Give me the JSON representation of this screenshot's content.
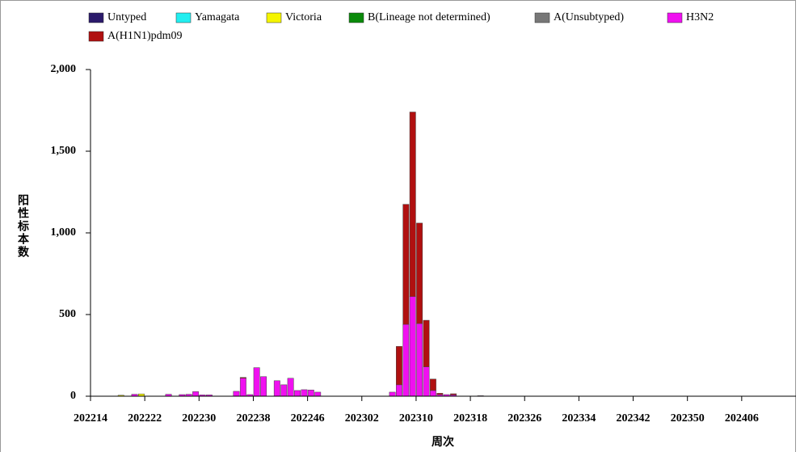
{
  "chart_data": {
    "type": "stacked_bar",
    "y_label": "阳性标本数",
    "x_label": "周次",
    "categories": [
      "202214",
      null,
      null,
      null,
      null,
      null,
      null,
      null,
      "202222",
      null,
      null,
      null,
      null,
      null,
      null,
      null,
      "202230",
      null,
      null,
      null,
      null,
      null,
      null,
      null,
      "202238",
      null,
      null,
      null,
      null,
      null,
      null,
      null,
      "202246",
      null,
      null,
      null,
      null,
      null,
      null,
      null,
      "202302",
      null,
      null,
      null,
      null,
      null,
      null,
      null,
      "202310",
      null,
      null,
      null,
      null,
      null,
      null,
      null,
      "202318",
      null,
      null,
      null,
      null,
      null,
      null,
      null,
      "202326",
      null,
      null,
      null,
      null,
      null,
      null,
      null,
      "202334",
      null,
      null,
      null,
      null,
      null,
      null,
      null,
      "202342",
      null,
      null,
      null,
      null,
      null,
      null,
      null,
      "202350",
      null,
      null,
      null,
      null,
      null,
      null,
      null,
      "202406",
      null,
      null,
      null,
      null,
      null,
      null,
      null
    ],
    "series": [
      {
        "name": "Untyped",
        "color": "#2b1a6b",
        "values": [
          0,
          0,
          0,
          0,
          0,
          0,
          0,
          0,
          0,
          0,
          0,
          0,
          0,
          0,
          0,
          0,
          0,
          0,
          0,
          0,
          0,
          0,
          0,
          0,
          0,
          0,
          0,
          0,
          0,
          0,
          0,
          0,
          0,
          0,
          0,
          0,
          0,
          0,
          0,
          0,
          0,
          0,
          0,
          0,
          0,
          0,
          0,
          0,
          0,
          0,
          0,
          0,
          0,
          0,
          0,
          0,
          0,
          0,
          0,
          0,
          0,
          0,
          0,
          0,
          0,
          0,
          0,
          0,
          0,
          0,
          0,
          0,
          0,
          0,
          0,
          0,
          0,
          0,
          0,
          0,
          0,
          0,
          0,
          0,
          0,
          0,
          0,
          0,
          0,
          0,
          0,
          0,
          0,
          0,
          0,
          0,
          0,
          0,
          0,
          0,
          0,
          0,
          0,
          0
        ]
      },
      {
        "name": "Yamagata",
        "color": "#22eef0",
        "values": [
          0,
          0,
          0,
          0,
          0,
          0,
          0,
          0,
          0,
          0,
          0,
          0,
          0,
          0,
          0,
          0,
          0,
          0,
          0,
          0,
          0,
          0,
          0,
          0,
          0,
          0,
          0,
          0,
          0,
          0,
          0,
          0,
          0,
          0,
          0,
          0,
          0,
          0,
          0,
          0,
          0,
          0,
          0,
          0,
          0,
          0,
          0,
          0,
          0,
          0,
          0,
          0,
          0,
          0,
          0,
          0,
          0,
          0,
          0,
          0,
          0,
          0,
          0,
          0,
          0,
          0,
          0,
          0,
          0,
          0,
          0,
          0,
          0,
          0,
          0,
          0,
          0,
          0,
          0,
          0,
          0,
          0,
          0,
          0,
          0,
          0,
          0,
          0,
          0,
          0,
          0,
          0,
          0,
          0,
          0,
          0,
          0,
          0,
          0,
          0,
          0,
          0,
          0,
          0
        ]
      },
      {
        "name": "Victoria",
        "color": "#f5f500",
        "values": [
          0,
          0,
          0,
          0,
          6,
          0,
          0,
          14,
          0,
          0,
          0,
          0,
          0,
          0,
          0,
          0,
          0,
          0,
          0,
          0,
          0,
          0,
          0,
          0,
          0,
          0,
          0,
          0,
          0,
          0,
          0,
          0,
          0,
          0,
          0,
          0,
          0,
          0,
          0,
          0,
          0,
          0,
          0,
          0,
          0,
          0,
          0,
          0,
          0,
          0,
          0,
          0,
          0,
          0,
          0,
          0,
          0,
          0,
          0,
          0,
          0,
          0,
          0,
          0,
          0,
          0,
          0,
          0,
          0,
          0,
          0,
          0,
          0,
          0,
          0,
          0,
          0,
          0,
          0,
          0,
          0,
          0,
          0,
          0,
          0,
          0,
          0,
          0,
          0,
          0,
          0,
          0,
          0,
          0,
          0,
          0,
          0,
          0,
          0,
          0,
          0,
          0,
          0,
          0
        ]
      },
      {
        "name": "B(Lineage not determined)",
        "color": "#0a8a0a",
        "values": [
          0,
          0,
          0,
          0,
          0,
          0,
          0,
          0,
          0,
          0,
          0,
          0,
          0,
          0,
          0,
          0,
          0,
          0,
          0,
          0,
          0,
          0,
          0,
          0,
          0,
          0,
          0,
          0,
          0,
          0,
          0,
          0,
          0,
          0,
          0,
          0,
          0,
          0,
          0,
          0,
          0,
          0,
          0,
          0,
          0,
          0,
          0,
          0,
          0,
          0,
          0,
          0,
          0,
          0,
          0,
          0,
          0,
          0,
          0,
          0,
          0,
          0,
          0,
          0,
          0,
          0,
          0,
          0,
          0,
          0,
          0,
          0,
          0,
          0,
          0,
          0,
          0,
          0,
          0,
          0,
          0,
          0,
          0,
          0,
          0,
          0,
          0,
          0,
          0,
          0,
          0,
          0,
          0,
          0,
          0,
          0,
          0,
          0,
          0,
          0,
          0,
          0,
          0,
          0
        ]
      },
      {
        "name": "A(Unsubtyped)",
        "color": "#777777",
        "values": [
          0,
          0,
          0,
          0,
          0,
          0,
          0,
          0,
          0,
          0,
          0,
          0,
          0,
          0,
          0,
          0,
          0,
          0,
          0,
          0,
          0,
          0,
          0,
          0,
          0,
          0,
          0,
          0,
          0,
          0,
          0,
          0,
          0,
          0,
          0,
          0,
          0,
          0,
          0,
          0,
          0,
          0,
          0,
          0,
          0,
          0,
          0,
          0,
          0,
          0,
          0,
          0,
          0,
          0,
          0,
          0,
          0,
          0,
          0,
          0,
          0,
          0,
          0,
          0,
          0,
          0,
          0,
          0,
          0,
          0,
          0,
          0,
          0,
          0,
          0,
          0,
          0,
          0,
          0,
          0,
          0,
          0,
          0,
          0,
          0,
          0,
          0,
          0,
          0,
          0,
          0,
          0,
          0,
          0,
          0,
          0,
          0,
          0,
          0,
          0,
          0,
          0,
          0,
          0
        ]
      },
      {
        "name": "H3N2",
        "color": "#f010f0",
        "values": [
          0,
          0,
          0,
          0,
          0,
          0,
          12,
          0,
          0,
          0,
          0,
          12,
          0,
          10,
          12,
          28,
          8,
          8,
          0,
          0,
          0,
          30,
          110,
          10,
          175,
          120,
          0,
          95,
          70,
          110,
          35,
          40,
          38,
          25,
          0,
          0,
          0,
          0,
          0,
          0,
          0,
          0,
          0,
          0,
          25,
          70,
          440,
          610,
          445,
          180,
          35,
          10,
          10,
          8,
          0,
          0,
          0,
          3,
          0,
          0,
          0,
          0,
          0,
          0,
          0,
          0,
          0,
          0,
          0,
          0,
          0,
          0,
          0,
          0,
          0,
          0,
          0,
          0,
          0,
          0,
          0,
          0,
          0,
          0,
          0,
          0,
          0,
          0,
          0,
          0,
          0,
          0,
          0,
          0,
          0,
          0,
          0,
          0,
          0,
          0,
          0,
          0,
          0,
          0
        ]
      },
      {
        "name": "A(H1N1)pdm09",
        "color": "#b01010",
        "values": [
          0,
          0,
          0,
          0,
          0,
          0,
          0,
          0,
          0,
          0,
          0,
          0,
          0,
          0,
          0,
          0,
          0,
          0,
          0,
          0,
          0,
          0,
          5,
          0,
          0,
          0,
          0,
          0,
          0,
          0,
          0,
          0,
          0,
          0,
          0,
          0,
          0,
          0,
          0,
          0,
          0,
          0,
          0,
          0,
          0,
          235,
          735,
          1130,
          615,
          285,
          70,
          8,
          0,
          7,
          0,
          0,
          0,
          0,
          0,
          0,
          0,
          0,
          0,
          0,
          0,
          0,
          0,
          0,
          0,
          0,
          0,
          0,
          0,
          0,
          0,
          0,
          0,
          0,
          0,
          0,
          0,
          0,
          0,
          0,
          0,
          0,
          0,
          0,
          0,
          0,
          0,
          0,
          0,
          0,
          0,
          0,
          0,
          0,
          0,
          0,
          0,
          0,
          0,
          0
        ]
      }
    ],
    "ylim": [
      0,
      2000
    ],
    "yticks": [
      0,
      500,
      {
        "value": 1000,
        "label": "1,000"
      },
      {
        "value": 1500,
        "label": "1,500"
      },
      {
        "value": 2000,
        "label": "2,000"
      }
    ],
    "grid": false,
    "legend": "top"
  }
}
